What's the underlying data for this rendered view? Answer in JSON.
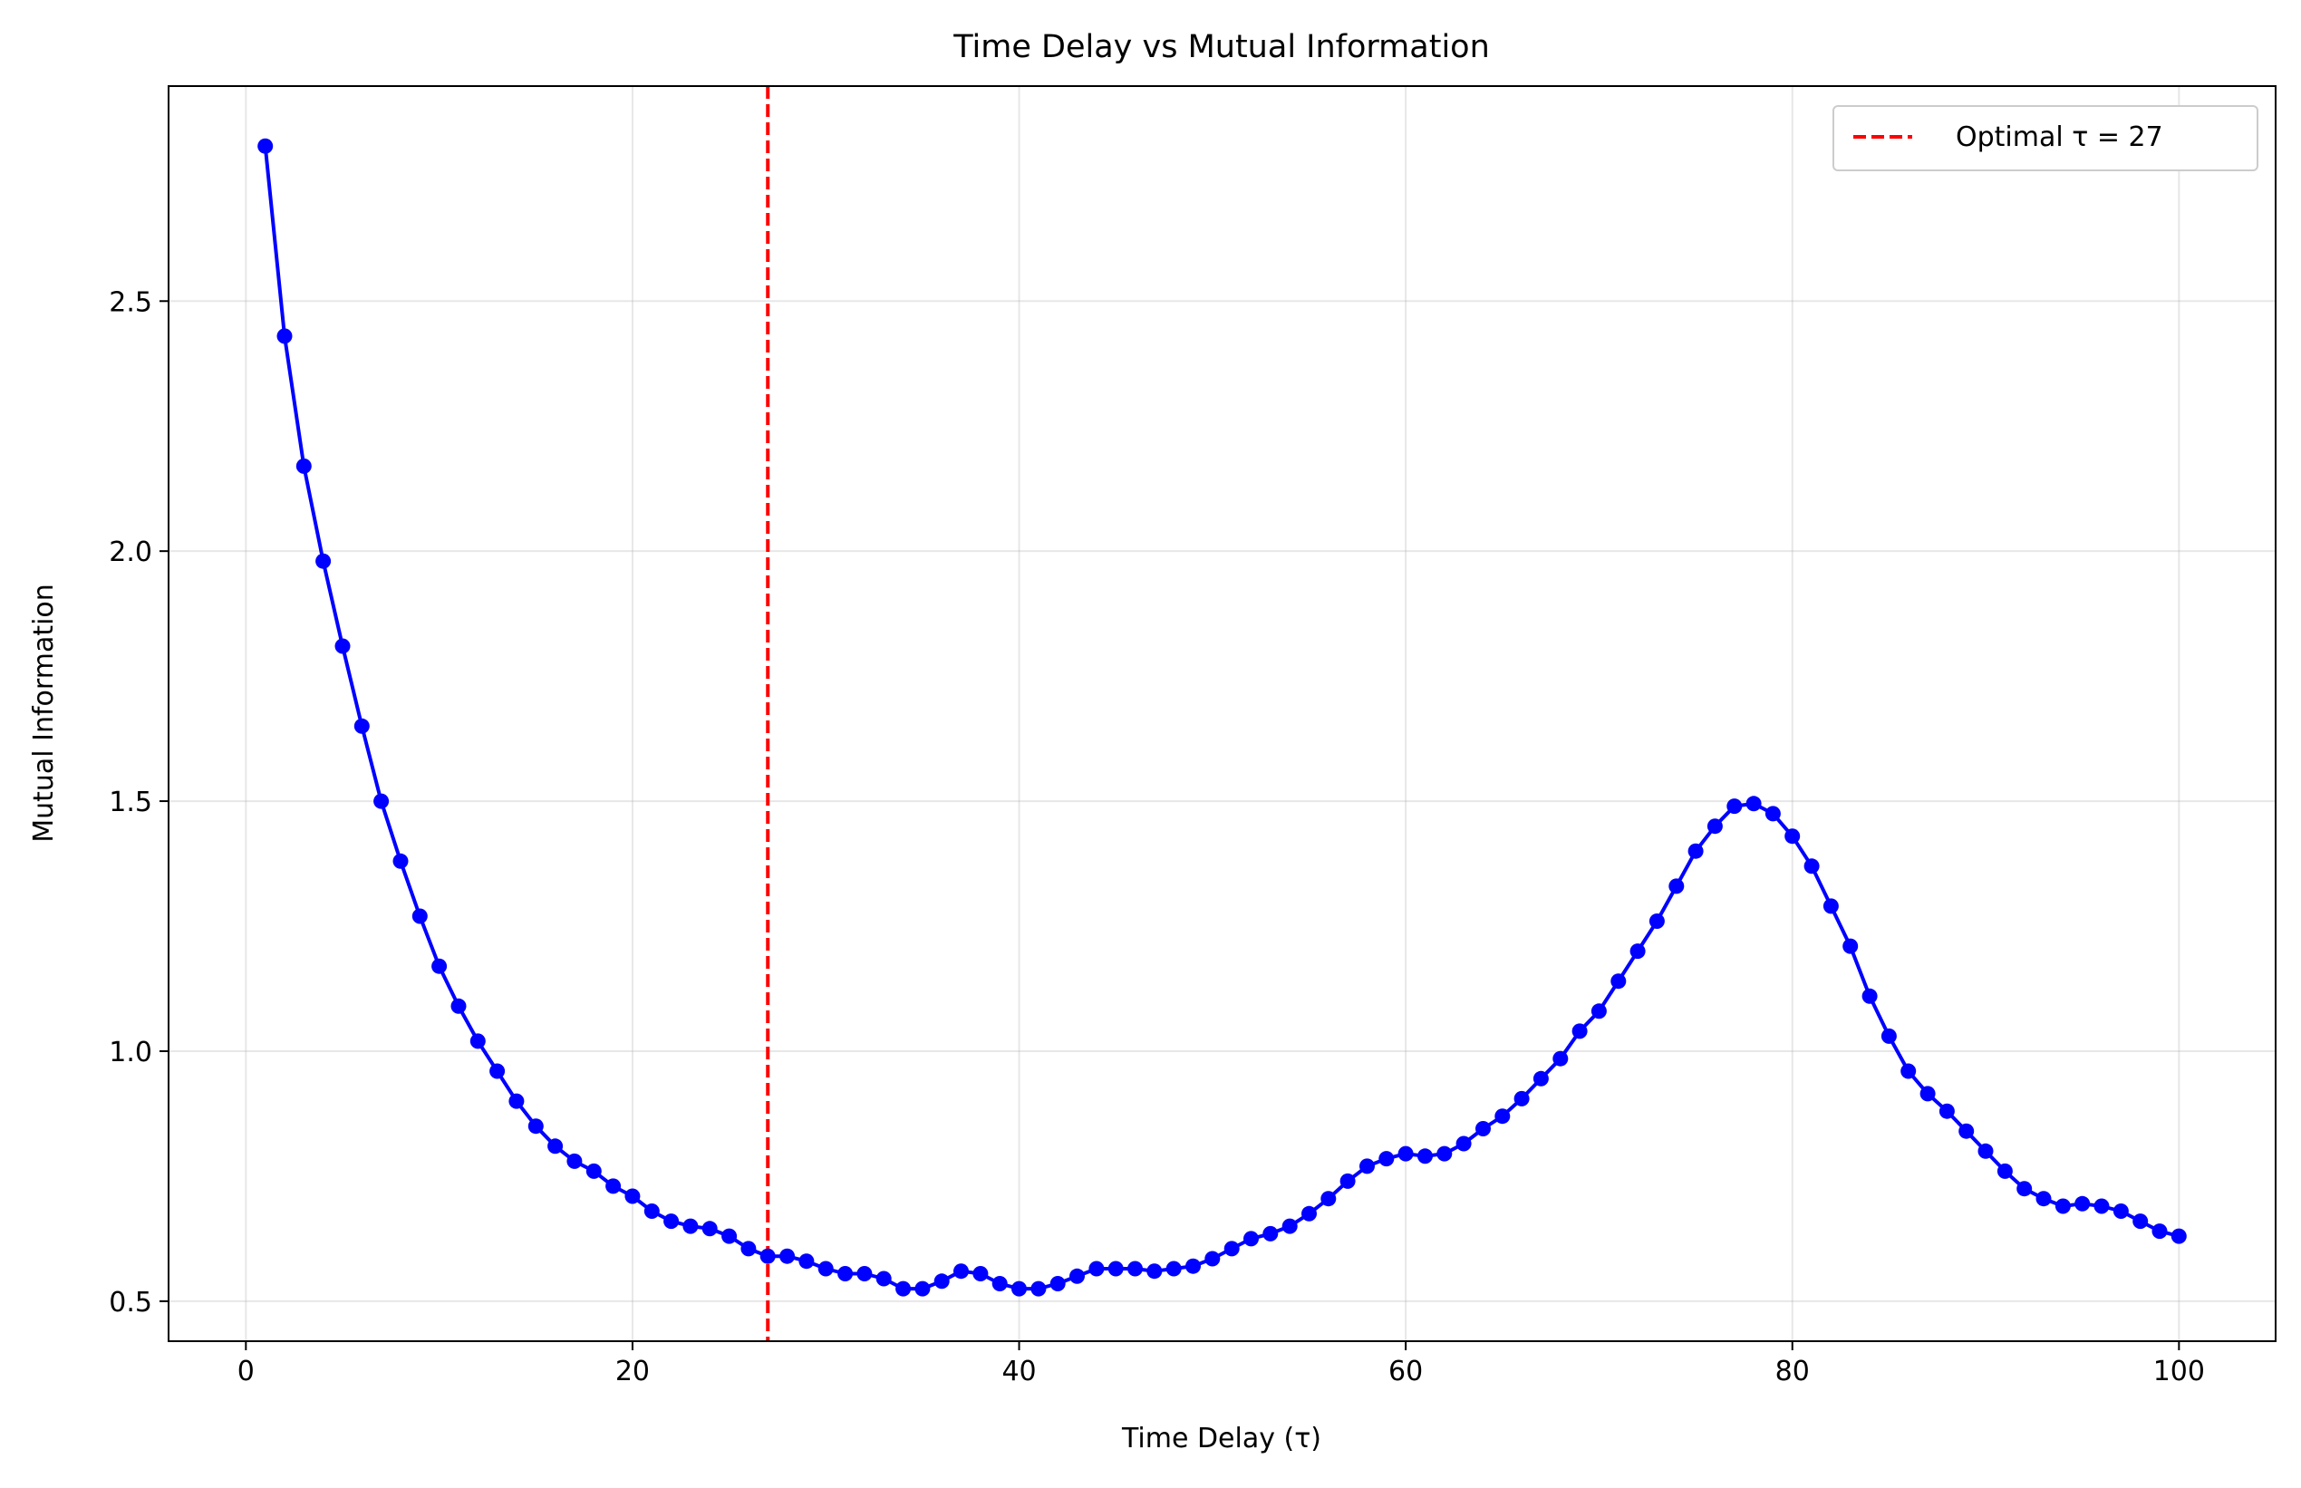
{
  "chart_data": {
    "type": "line",
    "title": "Time Delay vs Mutual Information",
    "xlabel": "Time Delay (τ)",
    "ylabel": "Mutual Information",
    "xlim": [
      -4,
      105
    ],
    "ylim": [
      0.42,
      2.93
    ],
    "xticks": [
      0,
      20,
      40,
      60,
      80,
      100
    ],
    "yticks": [
      0.5,
      1.0,
      1.5,
      2.0,
      2.5
    ],
    "xtick_labels": [
      "0",
      "20",
      "40",
      "60",
      "80",
      "100"
    ],
    "ytick_labels": [
      "0.5",
      "1.0",
      "1.5",
      "2.0",
      "2.5"
    ],
    "grid": true,
    "legend_position": "top-right",
    "series": [
      {
        "color": "#0000ff",
        "marker": "circle",
        "x": [
          1,
          2,
          3,
          4,
          5,
          6,
          7,
          8,
          9,
          10,
          11,
          12,
          13,
          14,
          15,
          16,
          17,
          18,
          19,
          20,
          21,
          22,
          23,
          24,
          25,
          26,
          27,
          28,
          29,
          30,
          31,
          32,
          33,
          34,
          35,
          36,
          37,
          38,
          39,
          40,
          41,
          42,
          43,
          44,
          45,
          46,
          47,
          48,
          49,
          50,
          51,
          52,
          53,
          54,
          55,
          56,
          57,
          58,
          59,
          60,
          61,
          62,
          63,
          64,
          65,
          66,
          67,
          68,
          69,
          70,
          71,
          72,
          73,
          74,
          75,
          76,
          77,
          78,
          79,
          80,
          81,
          82,
          83,
          84,
          85,
          86,
          87,
          88,
          89,
          90,
          91,
          92,
          93,
          94,
          95,
          96,
          97,
          98,
          99,
          100
        ],
        "y": [
          2.81,
          2.43,
          2.17,
          1.98,
          1.81,
          1.65,
          1.5,
          1.38,
          1.27,
          1.17,
          1.09,
          1.02,
          0.96,
          0.9,
          0.85,
          0.81,
          0.78,
          0.76,
          0.73,
          0.71,
          0.68,
          0.66,
          0.65,
          0.645,
          0.63,
          0.605,
          0.59,
          0.59,
          0.58,
          0.565,
          0.555,
          0.555,
          0.545,
          0.525,
          0.525,
          0.54,
          0.56,
          0.555,
          0.535,
          0.525,
          0.525,
          0.535,
          0.55,
          0.565,
          0.565,
          0.565,
          0.56,
          0.565,
          0.57,
          0.585,
          0.605,
          0.625,
          0.635,
          0.65,
          0.675,
          0.705,
          0.74,
          0.77,
          0.785,
          0.795,
          0.79,
          0.795,
          0.815,
          0.845,
          0.87,
          0.905,
          0.945,
          0.985,
          1.04,
          1.08,
          1.14,
          1.2,
          1.26,
          1.33,
          1.4,
          1.45,
          1.49,
          1.495,
          1.475,
          1.43,
          1.37,
          1.29,
          1.21,
          1.11,
          1.03,
          0.96,
          0.915,
          0.88,
          0.84,
          0.8,
          0.76,
          0.725,
          0.705,
          0.69,
          0.695,
          0.69,
          0.68,
          0.66,
          0.64,
          0.63
        ]
      }
    ],
    "vline": {
      "x": 27,
      "color": "#ff0000",
      "style": "dashed",
      "legend_label": "Optimal τ = 27"
    }
  }
}
